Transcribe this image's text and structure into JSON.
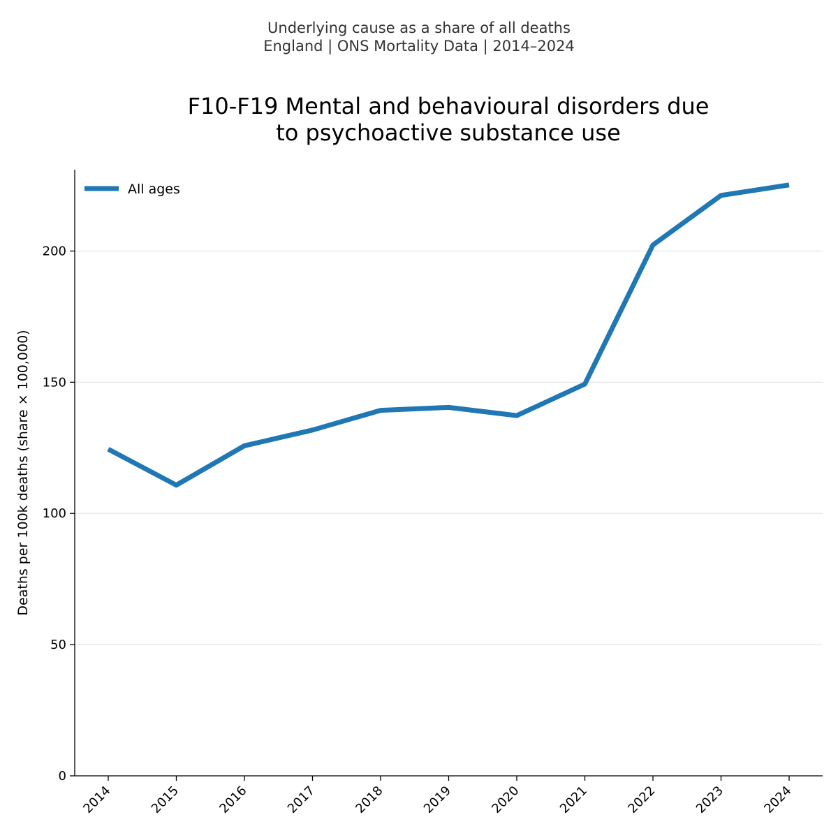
{
  "header": {
    "suptitle_line1": "Underlying cause as a share of all deaths",
    "suptitle_line2": "England | ONS Mortality Data | 2014–2024"
  },
  "colors": {
    "series": "#1f77b4",
    "grid": "#e6e6e6",
    "axis": "#000000"
  },
  "chart_data": {
    "type": "line",
    "title_line1": "F10-F19 Mental and behavioural disorders due",
    "title_line2": "to psychoactive substance use",
    "xlabel": "",
    "ylabel": "Deaths per 100k deaths (share × 100,000)",
    "x": [
      "2014",
      "2015",
      "2016",
      "2017",
      "2018",
      "2019",
      "2020",
      "2021",
      "2022",
      "2023",
      "2024"
    ],
    "series": [
      {
        "name": "All ages",
        "values": [
          124.5,
          110.8,
          125.8,
          131.8,
          139.3,
          140.4,
          137.3,
          149.3,
          202.3,
          221.2,
          225.2
        ]
      }
    ],
    "ylim": [
      0,
      231
    ],
    "yticks": [
      0,
      50,
      100,
      150,
      200
    ],
    "grid": "horizontal",
    "legend_position": "top-left"
  }
}
